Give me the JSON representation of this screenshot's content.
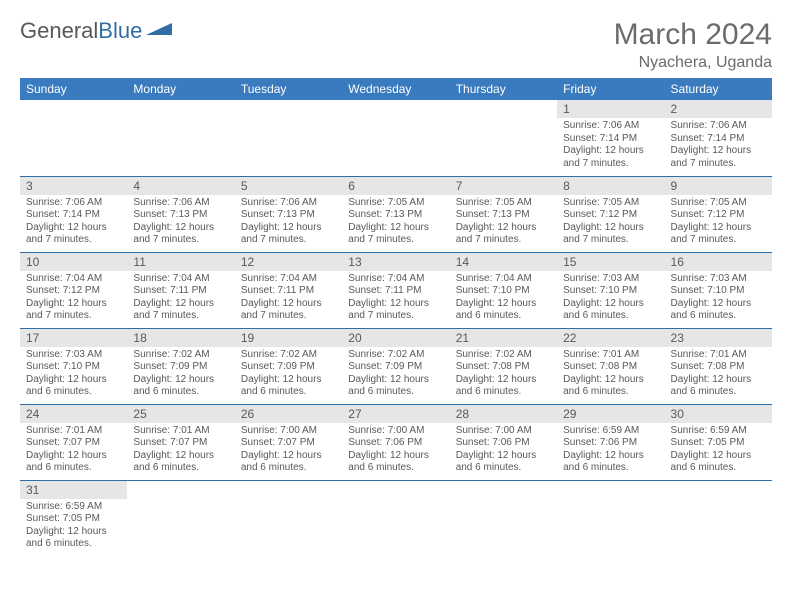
{
  "logo": {
    "text1": "General",
    "text2": "Blue"
  },
  "title": "March 2024",
  "location": "Nyachera, Uganda",
  "colors": {
    "header_bg": "#3a7bbf",
    "header_text": "#ffffff",
    "daynum_bg": "#e6e6e6",
    "border": "#2f6fa6",
    "text": "#595959",
    "logo_blue": "#2f6fa6"
  },
  "weekdays": [
    "Sunday",
    "Monday",
    "Tuesday",
    "Wednesday",
    "Thursday",
    "Friday",
    "Saturday"
  ],
  "weeks": [
    [
      null,
      null,
      null,
      null,
      null,
      {
        "n": "1",
        "sr": "7:06 AM",
        "ss": "7:14 PM",
        "dl": "12 hours and 7 minutes."
      },
      {
        "n": "2",
        "sr": "7:06 AM",
        "ss": "7:14 PM",
        "dl": "12 hours and 7 minutes."
      }
    ],
    [
      {
        "n": "3",
        "sr": "7:06 AM",
        "ss": "7:14 PM",
        "dl": "12 hours and 7 minutes."
      },
      {
        "n": "4",
        "sr": "7:06 AM",
        "ss": "7:13 PM",
        "dl": "12 hours and 7 minutes."
      },
      {
        "n": "5",
        "sr": "7:06 AM",
        "ss": "7:13 PM",
        "dl": "12 hours and 7 minutes."
      },
      {
        "n": "6",
        "sr": "7:05 AM",
        "ss": "7:13 PM",
        "dl": "12 hours and 7 minutes."
      },
      {
        "n": "7",
        "sr": "7:05 AM",
        "ss": "7:13 PM",
        "dl": "12 hours and 7 minutes."
      },
      {
        "n": "8",
        "sr": "7:05 AM",
        "ss": "7:12 PM",
        "dl": "12 hours and 7 minutes."
      },
      {
        "n": "9",
        "sr": "7:05 AM",
        "ss": "7:12 PM",
        "dl": "12 hours and 7 minutes."
      }
    ],
    [
      {
        "n": "10",
        "sr": "7:04 AM",
        "ss": "7:12 PM",
        "dl": "12 hours and 7 minutes."
      },
      {
        "n": "11",
        "sr": "7:04 AM",
        "ss": "7:11 PM",
        "dl": "12 hours and 7 minutes."
      },
      {
        "n": "12",
        "sr": "7:04 AM",
        "ss": "7:11 PM",
        "dl": "12 hours and 7 minutes."
      },
      {
        "n": "13",
        "sr": "7:04 AM",
        "ss": "7:11 PM",
        "dl": "12 hours and 7 minutes."
      },
      {
        "n": "14",
        "sr": "7:04 AM",
        "ss": "7:10 PM",
        "dl": "12 hours and 6 minutes."
      },
      {
        "n": "15",
        "sr": "7:03 AM",
        "ss": "7:10 PM",
        "dl": "12 hours and 6 minutes."
      },
      {
        "n": "16",
        "sr": "7:03 AM",
        "ss": "7:10 PM",
        "dl": "12 hours and 6 minutes."
      }
    ],
    [
      {
        "n": "17",
        "sr": "7:03 AM",
        "ss": "7:10 PM",
        "dl": "12 hours and 6 minutes."
      },
      {
        "n": "18",
        "sr": "7:02 AM",
        "ss": "7:09 PM",
        "dl": "12 hours and 6 minutes."
      },
      {
        "n": "19",
        "sr": "7:02 AM",
        "ss": "7:09 PM",
        "dl": "12 hours and 6 minutes."
      },
      {
        "n": "20",
        "sr": "7:02 AM",
        "ss": "7:09 PM",
        "dl": "12 hours and 6 minutes."
      },
      {
        "n": "21",
        "sr": "7:02 AM",
        "ss": "7:08 PM",
        "dl": "12 hours and 6 minutes."
      },
      {
        "n": "22",
        "sr": "7:01 AM",
        "ss": "7:08 PM",
        "dl": "12 hours and 6 minutes."
      },
      {
        "n": "23",
        "sr": "7:01 AM",
        "ss": "7:08 PM",
        "dl": "12 hours and 6 minutes."
      }
    ],
    [
      {
        "n": "24",
        "sr": "7:01 AM",
        "ss": "7:07 PM",
        "dl": "12 hours and 6 minutes."
      },
      {
        "n": "25",
        "sr": "7:01 AM",
        "ss": "7:07 PM",
        "dl": "12 hours and 6 minutes."
      },
      {
        "n": "26",
        "sr": "7:00 AM",
        "ss": "7:07 PM",
        "dl": "12 hours and 6 minutes."
      },
      {
        "n": "27",
        "sr": "7:00 AM",
        "ss": "7:06 PM",
        "dl": "12 hours and 6 minutes."
      },
      {
        "n": "28",
        "sr": "7:00 AM",
        "ss": "7:06 PM",
        "dl": "12 hours and 6 minutes."
      },
      {
        "n": "29",
        "sr": "6:59 AM",
        "ss": "7:06 PM",
        "dl": "12 hours and 6 minutes."
      },
      {
        "n": "30",
        "sr": "6:59 AM",
        "ss": "7:05 PM",
        "dl": "12 hours and 6 minutes."
      }
    ],
    [
      {
        "n": "31",
        "sr": "6:59 AM",
        "ss": "7:05 PM",
        "dl": "12 hours and 6 minutes."
      },
      null,
      null,
      null,
      null,
      null,
      null
    ]
  ],
  "labels": {
    "sunrise": "Sunrise: ",
    "sunset": "Sunset: ",
    "daylight": "Daylight: "
  }
}
